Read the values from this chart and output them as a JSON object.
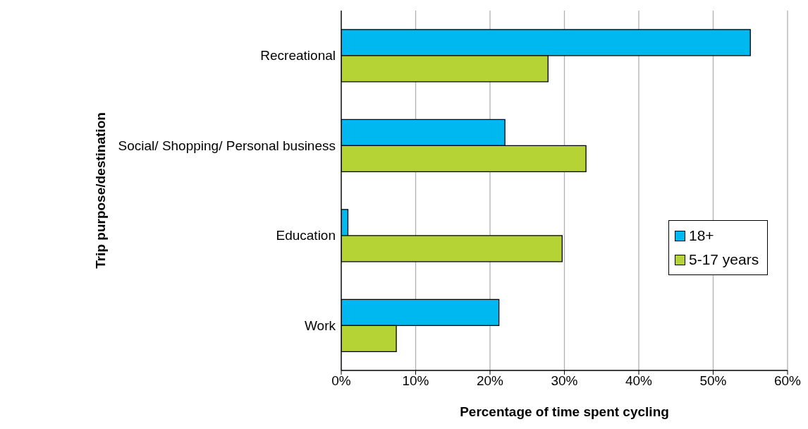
{
  "chart_data": {
    "type": "bar",
    "orientation": "horizontal",
    "xlabel": "Percentage of time  spent cycling",
    "ylabel": "Trip purpose/destination",
    "categories": [
      "Recreational",
      "Social/ Shopping/ Personal business",
      "Education",
      "Work"
    ],
    "series": [
      {
        "name": "18+",
        "color": "#00b8f0",
        "values": [
          55,
          22,
          0.9,
          21.2
        ]
      },
      {
        "name": "5-17 years",
        "color": "#b5d334",
        "values": [
          27.8,
          32.9,
          29.7,
          7.4
        ]
      }
    ],
    "xlim": [
      0,
      60
    ],
    "xticks": [
      {
        "value": 0,
        "label": "0%"
      },
      {
        "value": 10,
        "label": "10%"
      },
      {
        "value": 20,
        "label": "20%"
      },
      {
        "value": 30,
        "label": "30%"
      },
      {
        "value": 40,
        "label": "40%"
      },
      {
        "value": 50,
        "label": "50%"
      },
      {
        "value": 60,
        "label": "60%"
      }
    ],
    "grid": "x",
    "legend": "right"
  }
}
